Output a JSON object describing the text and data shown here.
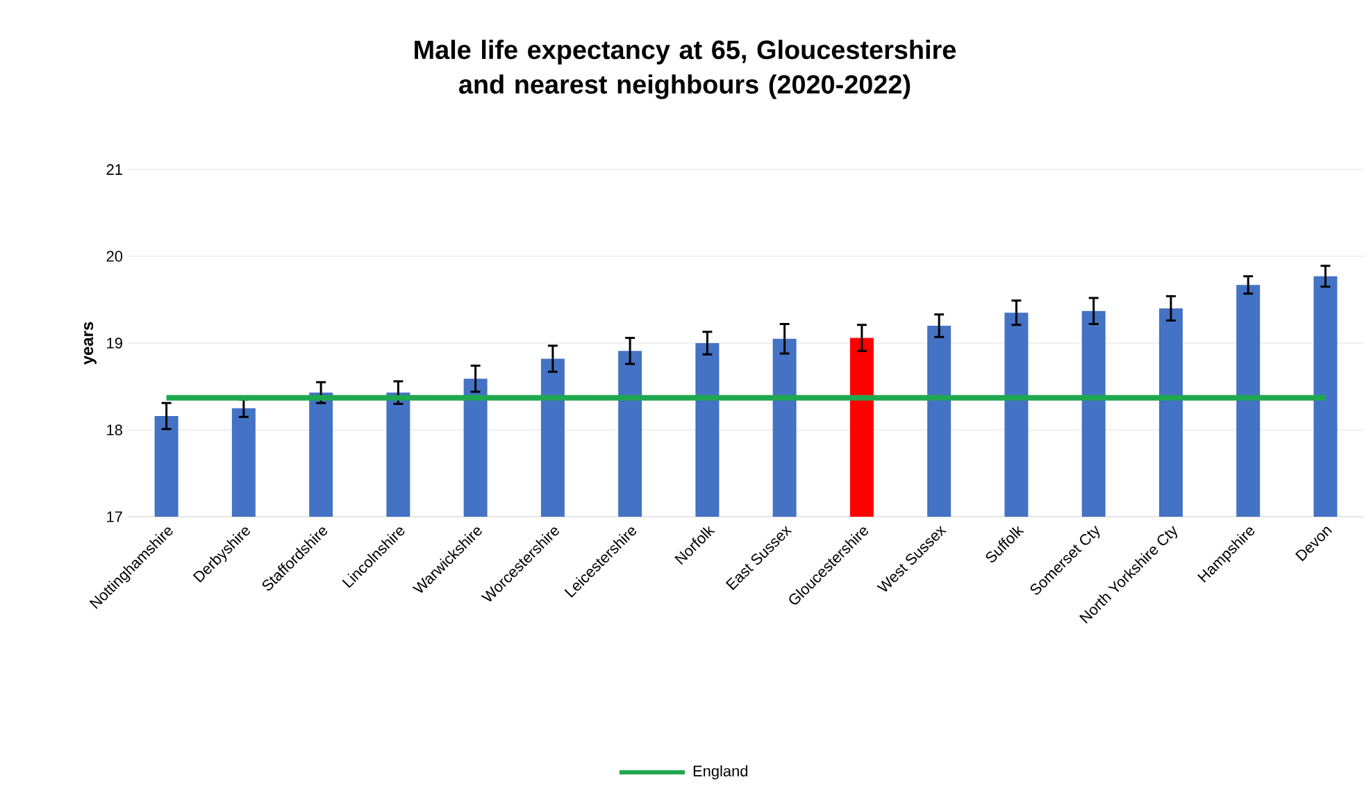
{
  "chart_data": {
    "type": "bar",
    "title": "Male life expectancy at 65, Gloucestershire and nearest neighbours (2020-2022)",
    "ylabel": "years",
    "categories": [
      "Nottinghamshire",
      "Derbyshire",
      "Staffordshire",
      "Lincolnshire",
      "Warwickshire",
      "Worcestershire",
      "Leicestershire",
      "Norfolk",
      "East Sussex",
      "Gloucestershire",
      "West Sussex",
      "Suffolk",
      "Somerset Cty",
      "North Yorkshire Cty",
      "Hampshire",
      "Devon"
    ],
    "values": [
      18.16,
      18.25,
      18.43,
      18.43,
      18.59,
      18.82,
      18.91,
      19.0,
      19.05,
      19.06,
      19.2,
      19.35,
      19.37,
      19.4,
      19.67,
      19.77
    ],
    "errors": [
      0.15,
      0.1,
      0.12,
      0.13,
      0.15,
      0.15,
      0.15,
      0.13,
      0.17,
      0.15,
      0.13,
      0.14,
      0.15,
      0.14,
      0.1,
      0.12
    ],
    "colors": [
      "#4472c4",
      "#4472c4",
      "#4472c4",
      "#4472c4",
      "#4472c4",
      "#4472c4",
      "#4472c4",
      "#4472c4",
      "#4472c4",
      "#ff0000",
      "#4472c4",
      "#4472c4",
      "#4472c4",
      "#4472c4",
      "#4472c4",
      "#4472c4"
    ],
    "ylim": [
      17,
      21
    ],
    "yticks": [
      17,
      18,
      19,
      20,
      21
    ],
    "grid": "y",
    "legend": "bottom",
    "ref_lines": [
      {
        "axis": "y",
        "value": 18.37,
        "label": "England",
        "color": "#1fa84f"
      }
    ]
  }
}
